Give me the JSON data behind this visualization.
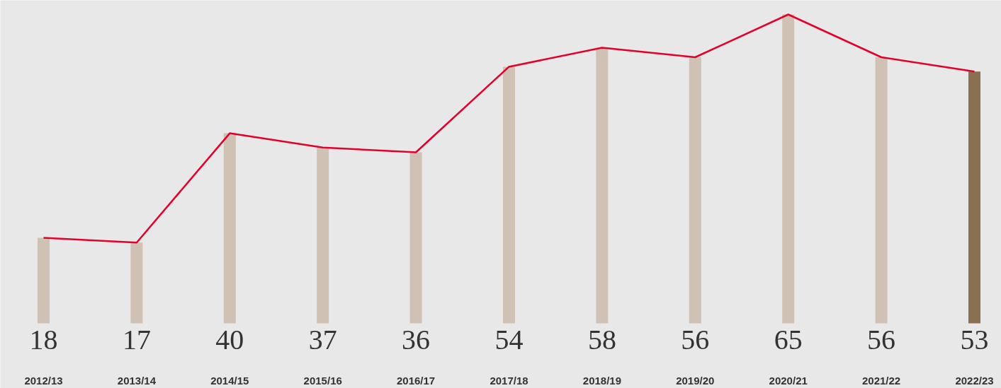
{
  "chart_data": {
    "type": "bar",
    "categories": [
      "2012/13",
      "2013/14",
      "2014/15",
      "2015/16",
      "2016/17",
      "2017/18",
      "2018/19",
      "2019/20",
      "2020/21",
      "2021/22",
      "2022/23"
    ],
    "series": [
      {
        "colors": [
          "#cfc1b3",
          "#cfc1b3",
          "#cfc1b3",
          "#cfc1b3",
          "#cfc1b3",
          "#cfc1b3",
          "#cfc1b3",
          "#cfc1b3",
          "#cfc1b3",
          "#cfc1b3",
          "#8b6f53"
        ],
        "values": [
          18,
          17,
          40,
          37,
          36,
          54,
          58,
          56,
          65,
          56,
          53
        ],
        "value_labels": [
          "18",
          "17",
          "40",
          "37",
          "36",
          "54",
          "58",
          "56",
          "65",
          "56",
          "53"
        ]
      },
      {
        "type": "line",
        "color": "#e4002b",
        "values": [
          18,
          17,
          40,
          37,
          36,
          54,
          58,
          56,
          65,
          56,
          53
        ]
      }
    ]
  }
}
